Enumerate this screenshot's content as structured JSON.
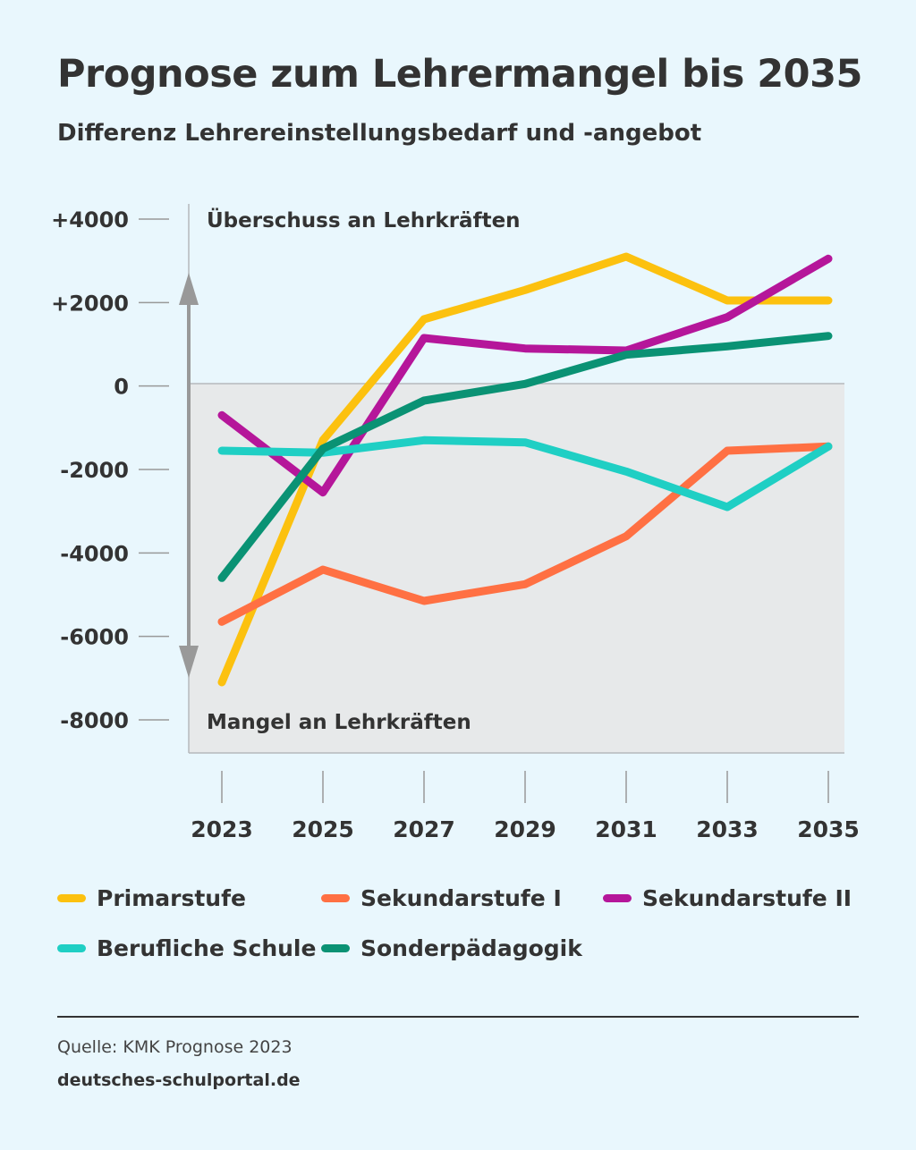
{
  "header": {
    "title": "Prognose zum Lehrermangel bis 2035",
    "subtitle": "Differenz Lehrereinstellungsbedarf und -angebot"
  },
  "chart_data": {
    "type": "line",
    "x": [
      "2023",
      "2025",
      "2027",
      "2029",
      "2031",
      "2033",
      "2035"
    ],
    "y_ticks": [
      {
        "value": 4000,
        "label": "+4000"
      },
      {
        "value": 2000,
        "label": "+2000"
      },
      {
        "value": 0,
        "label": "0"
      },
      {
        "value": -2000,
        "label": "-2000"
      },
      {
        "value": -4000,
        "label": "-4000"
      },
      {
        "value": -6000,
        "label": "-6000"
      },
      {
        "value": -8000,
        "label": "-8000"
      }
    ],
    "ylim": [
      -8800,
      4000
    ],
    "annotations": {
      "surplus": "Überschuss an Lehrkräften",
      "shortage": "Mangel an Lehrkräften"
    },
    "series": [
      {
        "name": "Primarstufe",
        "color": "#fcc10f",
        "values": [
          -7100,
          -1300,
          1600,
          2300,
          3100,
          2050,
          2050
        ]
      },
      {
        "name": "Sekundarstufe I",
        "color": "#ff7043",
        "values": [
          -5650,
          -4400,
          -5150,
          -4750,
          -3600,
          -1550,
          -1450
        ]
      },
      {
        "name": "Sekundarstufe II",
        "color": "#b5169a",
        "values": [
          -700,
          -2550,
          1150,
          900,
          850,
          1650,
          3050
        ]
      },
      {
        "name": "Berufliche Schule",
        "color": "#1fcfc4",
        "values": [
          -1550,
          -1600,
          -1300,
          -1350,
          -2050,
          -2900,
          -1450
        ]
      },
      {
        "name": "Sonderpädagogik",
        "color": "#0a9274",
        "values": [
          -4600,
          -1500,
          -350,
          50,
          750,
          950,
          1200
        ]
      }
    ]
  },
  "footer": {
    "source": "Quelle: KMK Prognose 2023",
    "site": "deutsches-schulportal.de"
  }
}
